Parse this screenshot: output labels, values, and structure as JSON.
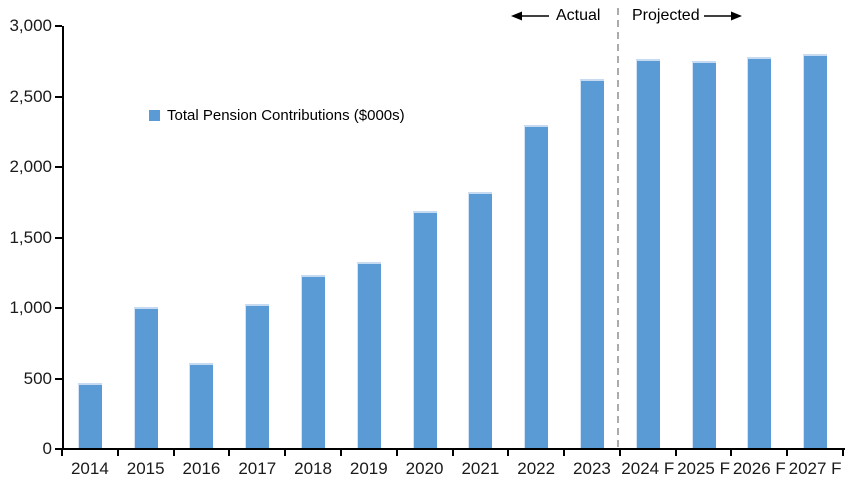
{
  "chart_data": {
    "type": "bar",
    "title": "",
    "legend": "Total Pension Contributions ($000s)",
    "categories": [
      "2014",
      "2015",
      "2016",
      "2017",
      "2018",
      "2019",
      "2020",
      "2021",
      "2022",
      "2023",
      "2024 F",
      "2025 F",
      "2026 F",
      "2027 F"
    ],
    "values": [
      470,
      1005,
      610,
      1030,
      1235,
      1325,
      1690,
      1820,
      2295,
      2625,
      2765,
      2750,
      2780,
      2800
    ],
    "xlabel": "",
    "ylabel": "",
    "ylim": [
      0,
      3000
    ],
    "ytick_values": [
      0,
      500,
      1000,
      1500,
      2000,
      2500,
      3000
    ],
    "ytick_labels": [
      "0",
      "500",
      "1,000",
      "1,500",
      "2,000",
      "2,500",
      "3,000"
    ],
    "grid": false,
    "legend_position": "inside-upper-left",
    "annotations": {
      "actual_label": "Actual",
      "projected_label": "Projected",
      "divider_after_category": "2023"
    },
    "colors": {
      "bar": "#5B9BD5",
      "bar_top_edge": "#C6DBF2",
      "axis": "#000000",
      "divider": "#ABABAB",
      "tick_text": "#1A1A1A"
    }
  }
}
